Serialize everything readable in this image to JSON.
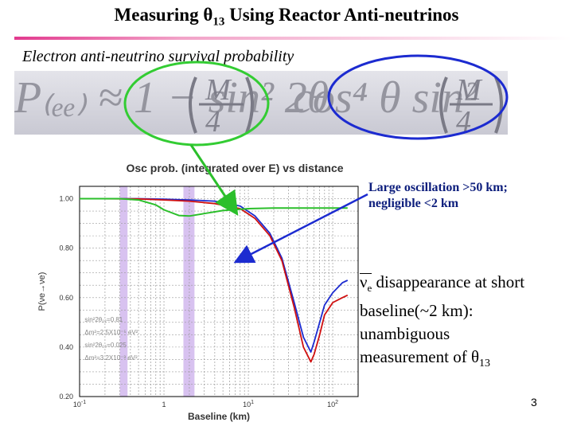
{
  "slide": {
    "title_prefix": "Measuring ",
    "title_theta": "θ",
    "title_sub": "13",
    "title_suffix": " Using Reactor Anti-neutrinos",
    "subtitle": "Electron anti-neutrino survival probability",
    "page_number": "3"
  },
  "formula": {
    "numerator": "M",
    "denominator": "4"
  },
  "plot": {
    "title": "Osc prob. (integrated over E) vs distance",
    "ylabel": "P(νe→νe)",
    "xlabel": "Baseline (km)",
    "y_ticks": [
      "1.00",
      "0.80",
      "0.60",
      "0.40",
      "0.20"
    ],
    "x_base": "10",
    "x_exps": [
      "-1",
      "1",
      "2"
    ],
    "x_one": "1",
    "legend": {
      "l1": "sin²2θ₁₂=0.81",
      "l2": "Δm²=2.5X10⁻⁵ eV²",
      "l3": "sin²2θ₁₃=0.025",
      "l4": "Δm²=3.2X10⁻³ eV²"
    }
  },
  "notes": {
    "large_osc_line1": "Large oscillation >50 km;",
    "large_osc_line2": "negligible <2 km",
    "nu_symbol": "ν",
    "nu_sub": "e",
    "line1_rest": " disappearance at short",
    "line2": "baseline(~2 km):",
    "line3": "unambiguous",
    "line4_prefix": "measurement of ",
    "theta": "θ",
    "theta_sub": "13"
  },
  "chart_data": {
    "type": "line",
    "title": "Osc prob. (integrated over E) vs distance",
    "xlabel": "Baseline (km)",
    "ylabel": "P(νe→νe)",
    "xscale": "log",
    "xlim": [
      0.1,
      200
    ],
    "ylim": [
      0.2,
      1.05
    ],
    "grid": true,
    "series": [
      {
        "color": "#1c2bd0",
        "x": [
          0.1,
          0.5,
          1,
          2,
          4,
          8,
          12,
          18,
          25,
          35,
          45,
          55,
          60,
          70,
          80,
          100,
          130,
          150
        ],
        "y": [
          1.0,
          1.0,
          0.998,
          0.995,
          0.99,
          0.97,
          0.93,
          0.86,
          0.76,
          0.58,
          0.44,
          0.38,
          0.42,
          0.5,
          0.57,
          0.62,
          0.66,
          0.67
        ]
      },
      {
        "color": "#d01010",
        "x": [
          0.1,
          0.5,
          1,
          2,
          4,
          8,
          12,
          18,
          25,
          35,
          45,
          55,
          60,
          70,
          80,
          100,
          130,
          150
        ],
        "y": [
          1.0,
          0.999,
          0.995,
          0.99,
          0.98,
          0.96,
          0.92,
          0.85,
          0.75,
          0.56,
          0.4,
          0.34,
          0.37,
          0.45,
          0.53,
          0.58,
          0.6,
          0.61
        ]
      },
      {
        "color": "#2bbf2b",
        "x": [
          0.1,
          0.3,
          0.5,
          0.8,
          1,
          1.5,
          2,
          3,
          5,
          10,
          20,
          50,
          100,
          150
        ],
        "y": [
          1.0,
          1.0,
          0.995,
          0.975,
          0.955,
          0.932,
          0.93,
          0.94,
          0.952,
          0.96,
          0.962,
          0.962,
          0.962,
          0.962
        ]
      }
    ]
  }
}
